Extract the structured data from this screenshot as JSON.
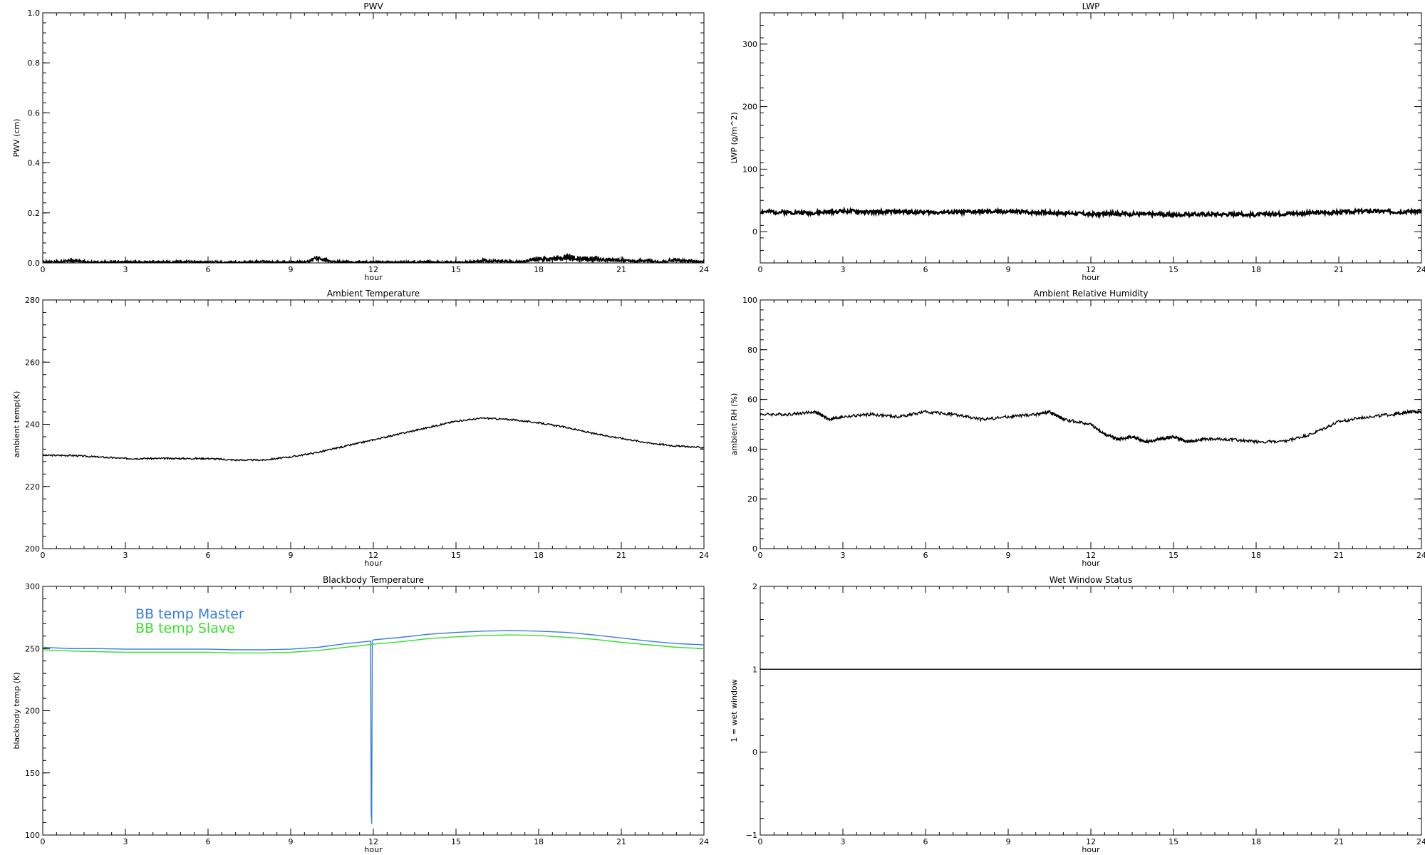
{
  "chart_data": [
    {
      "type": "line",
      "title": "PWV",
      "xlabel": "hour",
      "ylabel": "PWV (cm)",
      "xlim": [
        0,
        24
      ],
      "ylim": [
        0,
        1.0
      ],
      "xticks": [
        0,
        3,
        6,
        9,
        12,
        15,
        18,
        21,
        24
      ],
      "yticks": [
        0.0,
        0.2,
        0.4,
        0.6,
        0.8,
        1.0
      ],
      "ytick_labels": [
        "0.0",
        "0.2",
        "0.4",
        "0.6",
        "0.8",
        "1.0"
      ],
      "grid": false,
      "series": [
        {
          "color": "#000000",
          "x": [
            0,
            0.5,
            1,
            1.5,
            2,
            2.5,
            3,
            3.5,
            4,
            4.5,
            5,
            5.5,
            6,
            6.5,
            7,
            7.5,
            8,
            8.5,
            9,
            9.5,
            10,
            10.5,
            11,
            11.5,
            12,
            12.5,
            13,
            13.5,
            14,
            14.5,
            15,
            15.5,
            16,
            16.5,
            17,
            17.5,
            18,
            18.5,
            19,
            19.5,
            20,
            20.5,
            21,
            21.5,
            22,
            22.5,
            23,
            23.5,
            24
          ],
          "values": [
            0.005,
            0.004,
            0.012,
            0.006,
            0.003,
            0.005,
            0.004,
            0.003,
            0.005,
            0.003,
            0.006,
            0.004,
            0.004,
            0.003,
            0.004,
            0.003,
            0.008,
            0.003,
            0.004,
            0.005,
            0.025,
            0.004,
            0.004,
            0.003,
            0.005,
            0.004,
            0.003,
            0.003,
            0.005,
            0.003,
            0.004,
            0.004,
            0.012,
            0.008,
            0.006,
            0.007,
            0.022,
            0.018,
            0.028,
            0.022,
            0.02,
            0.015,
            0.014,
            0.012,
            0.01,
            0.004,
            0.016,
            0.01,
            0.006
          ]
        }
      ]
    },
    {
      "type": "line",
      "title": "LWP",
      "xlabel": "hour",
      "ylabel": "LWP (g/m^2)",
      "xlim": [
        0,
        24
      ],
      "ylim": [
        -50,
        350
      ],
      "xticks": [
        0,
        3,
        6,
        9,
        12,
        15,
        18,
        21,
        24
      ],
      "yticks": [
        0,
        100,
        200,
        300
      ],
      "ytick_labels": [
        "0",
        "100",
        "200",
        "300"
      ],
      "grid": false,
      "series": [
        {
          "color": "#000000",
          "x": [
            0,
            1,
            2,
            3,
            4,
            5,
            6,
            7,
            8,
            9,
            10,
            11,
            12,
            13,
            14,
            15,
            16,
            17,
            18,
            19,
            20,
            21,
            22,
            23,
            24
          ],
          "values": [
            32,
            31,
            30,
            33,
            31,
            32,
            31,
            31,
            32,
            32,
            31,
            30,
            28,
            29,
            28,
            27,
            28,
            28,
            27,
            29,
            30,
            31,
            33,
            32,
            33
          ]
        }
      ]
    },
    {
      "type": "line",
      "title": "Ambient Temperature",
      "xlabel": "hour",
      "ylabel": "ambient temp(K)",
      "xlim": [
        0,
        24
      ],
      "ylim": [
        200,
        280
      ],
      "xticks": [
        0,
        3,
        6,
        9,
        12,
        15,
        18,
        21,
        24
      ],
      "yticks": [
        200,
        220,
        240,
        260,
        280
      ],
      "ytick_labels": [
        "200",
        "220",
        "240",
        "260",
        "280"
      ],
      "grid": false,
      "series": [
        {
          "color": "#000000",
          "x": [
            0,
            1,
            2,
            3,
            4,
            5,
            6,
            7,
            8,
            9,
            10,
            11,
            12,
            13,
            14,
            15,
            16,
            17,
            18,
            19,
            20,
            21,
            22,
            23,
            24
          ],
          "values": [
            230,
            230,
            229.5,
            229,
            229,
            229,
            229,
            228.5,
            228.5,
            229.5,
            231,
            233,
            235,
            237,
            239,
            241,
            242,
            241.5,
            240.5,
            239,
            237,
            235.5,
            234,
            233,
            232.5
          ]
        }
      ]
    },
    {
      "type": "line",
      "title": "Ambient Relative Humidity",
      "xlabel": "hour",
      "ylabel": "ambient RH (%)",
      "xlim": [
        0,
        24
      ],
      "ylim": [
        0,
        100
      ],
      "xticks": [
        0,
        3,
        6,
        9,
        12,
        15,
        18,
        21,
        24
      ],
      "yticks": [
        0,
        20,
        40,
        60,
        80,
        100
      ],
      "ytick_labels": [
        "0",
        "20",
        "40",
        "60",
        "80",
        "100"
      ],
      "grid": false,
      "series": [
        {
          "color": "#000000",
          "x": [
            0,
            1,
            2,
            2.5,
            3,
            4,
            5,
            6,
            7,
            8,
            9,
            10,
            10.5,
            11,
            12,
            12.5,
            13,
            13.5,
            14,
            14.5,
            15,
            15.5,
            16,
            17,
            18,
            19,
            20,
            21,
            22,
            23,
            23.5,
            24
          ],
          "values": [
            54,
            54,
            55,
            52,
            53,
            54,
            53,
            55,
            54,
            52,
            53,
            54,
            55,
            52,
            50,
            46,
            44,
            45,
            43,
            44,
            45,
            43,
            44,
            44,
            43,
            43,
            46,
            51,
            53,
            54,
            55,
            55
          ]
        }
      ]
    },
    {
      "type": "line",
      "title": "Blackbody Temperature",
      "xlabel": "hour",
      "ylabel": "blackbody temp (K)",
      "xlim": [
        0,
        24
      ],
      "ylim": [
        100,
        300
      ],
      "xticks": [
        0,
        3,
        6,
        9,
        12,
        15,
        18,
        21,
        24
      ],
      "yticks": [
        100,
        150,
        200,
        250,
        300
      ],
      "ytick_labels": [
        "100",
        "150",
        "200",
        "250",
        "300"
      ],
      "grid": false,
      "legend_position": "top-left",
      "series": [
        {
          "name": "BB temp Master",
          "color": "#3a7de0",
          "x": [
            0,
            1,
            2,
            3,
            4,
            5,
            6,
            7,
            8,
            9,
            10,
            11,
            11.9,
            11.92,
            11.94,
            11.96,
            12,
            13,
            14,
            15,
            16,
            17,
            18,
            19,
            20,
            21,
            22,
            23,
            24
          ],
          "values": [
            251,
            250,
            250,
            249.5,
            249.5,
            249.5,
            249.5,
            249,
            249,
            249.5,
            251,
            254,
            256,
            118,
            109,
            256,
            257,
            259,
            261.5,
            263,
            264,
            264.5,
            264,
            263,
            261,
            258.5,
            256,
            254,
            253
          ]
        },
        {
          "name": "BB temp Slave",
          "color": "#36e02a",
          "x": [
            0,
            1,
            2,
            3,
            4,
            5,
            6,
            7,
            8,
            9,
            10,
            11,
            12,
            13,
            14,
            15,
            16,
            17,
            18,
            19,
            20,
            21,
            22,
            23,
            24
          ],
          "values": [
            249,
            248,
            247.5,
            247,
            247,
            247,
            247,
            246.5,
            246.5,
            247,
            248.5,
            251,
            253.5,
            255.5,
            258,
            259.5,
            260.5,
            261,
            260.5,
            259,
            257.5,
            255,
            253,
            251,
            250
          ]
        }
      ]
    },
    {
      "type": "line",
      "title": "Wet Window Status",
      "xlabel": "hour",
      "ylabel": "1 = wet window",
      "xlim": [
        0,
        24
      ],
      "ylim": [
        -1,
        2
      ],
      "xticks": [
        0,
        3,
        6,
        9,
        12,
        15,
        18,
        21,
        24
      ],
      "yticks": [
        -1,
        0,
        1,
        2
      ],
      "ytick_labels": [
        "-1",
        "0",
        "1",
        "2"
      ],
      "grid": false,
      "series": [
        {
          "color": "#000000",
          "x": [
            0,
            24
          ],
          "values": [
            1,
            1
          ]
        }
      ]
    }
  ]
}
